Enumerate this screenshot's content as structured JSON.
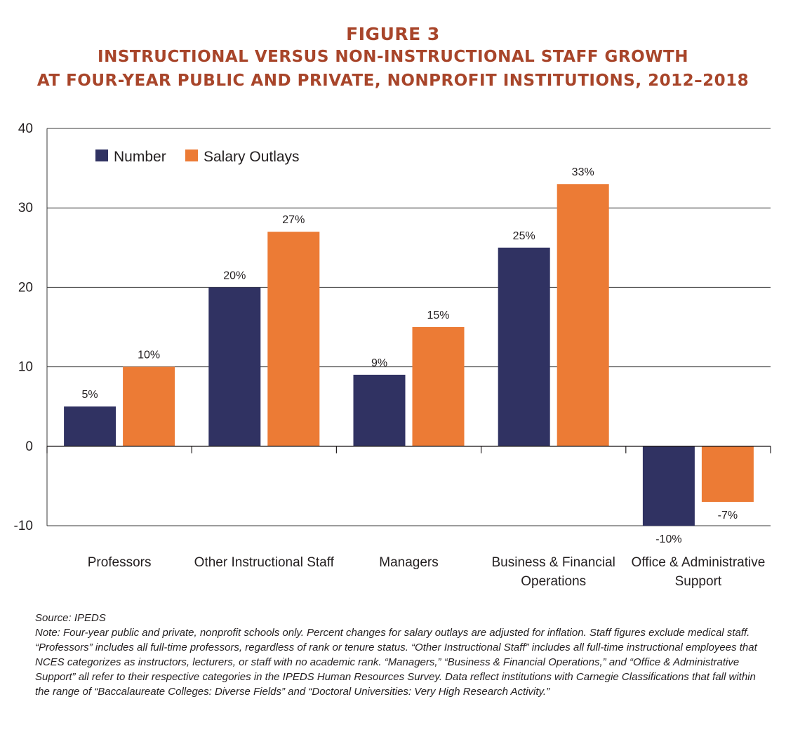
{
  "figure_number": "FIGURE 3",
  "title_lines": [
    "INSTRUCTIONAL VERSUS NON-INSTRUCTIONAL STAFF GROWTH",
    "AT FOUR-YEAR PUBLIC AND PRIVATE, NONPROFIT INSTITUTIONS, 2012–2018"
  ],
  "colors": {
    "title": "#a8452a",
    "number": "#303262",
    "salary": "#ec7b35"
  },
  "chart_data": {
    "type": "bar",
    "title": "INSTRUCTIONAL VERSUS NON-INSTRUCTIONAL STAFF GROWTH AT FOUR-YEAR PUBLIC AND PRIVATE, NONPROFIT INSTITUTIONS, 2012–2018",
    "categories": [
      [
        "Professors"
      ],
      [
        "Other Instructional Staff"
      ],
      [
        "Managers"
      ],
      [
        "Business & Financial",
        "Operations"
      ],
      [
        "Office & Administrative",
        "Support"
      ]
    ],
    "series": [
      {
        "name": "Number",
        "color": "#303262",
        "values": [
          5,
          20,
          9,
          25,
          -10
        ],
        "labels": [
          "5%",
          "20%",
          "9%",
          "25%",
          "-10%"
        ]
      },
      {
        "name": "Salary Outlays",
        "color": "#ec7b35",
        "values": [
          10,
          27,
          15,
          33,
          -7
        ],
        "labels": [
          "10%",
          "27%",
          "15%",
          "33%",
          "-7%"
        ]
      }
    ],
    "ylim": [
      -10,
      40
    ],
    "yticks": [
      -10,
      0,
      10,
      20,
      30,
      40
    ],
    "grid": true,
    "legend_position": "top-left",
    "xlabel": "",
    "ylabel": ""
  },
  "source": "Source: IPEDS",
  "note": "Note: Four-year public and private, nonprofit schools only. Percent changes for salary outlays are adjusted for inflation. Staff figures exclude medical staff. “Professors” includes all full-time professors, regardless of rank or tenure status. “Other Instructional Staff” includes all full-time instructional employees that NCES categorizes as instructors, lecturers, or staff with no academic rank. “Managers,” “Business & Financial Operations,” and “Office & Administrative Support” all refer to their respective categories in the IPEDS Human Resources Survey. Data reflect institutions with Carnegie Classifications that fall within the range of “Baccalaureate Colleges: Diverse Fields” and “Doctoral Universities: Very High Research Activity.”"
}
